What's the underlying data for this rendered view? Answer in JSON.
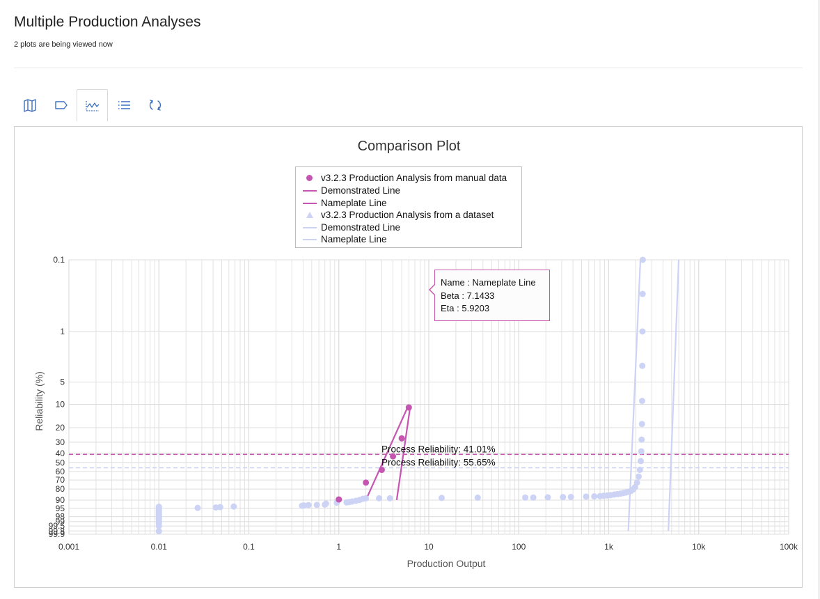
{
  "page": {
    "title": "Multiple Production Analyses",
    "subtitle": "2 plots are being viewed now"
  },
  "toolbar": {
    "buttons": [
      {
        "icon": "map-icon",
        "active": false
      },
      {
        "icon": "tag-icon",
        "active": false
      },
      {
        "icon": "line-chart-icon",
        "active": true
      },
      {
        "icon": "list-icon",
        "active": false
      },
      {
        "icon": "refresh-icon",
        "active": false
      }
    ]
  },
  "colors": {
    "manual": "#c455b1",
    "dataset": "#cdd3f5",
    "grid": "#dcdcdc",
    "axis_text": "#333333"
  },
  "chart_data": {
    "type": "scatter",
    "title": "Comparison Plot",
    "xlabel": "Production Output",
    "ylabel": "Reliability (%)",
    "x_scale": "log",
    "xlim": [
      0.001,
      100000
    ],
    "x_ticks": [
      {
        "value": 0.001,
        "label": "0.001"
      },
      {
        "value": 0.01,
        "label": "0.01"
      },
      {
        "value": 0.1,
        "label": "0.1"
      },
      {
        "value": 1,
        "label": "1"
      },
      {
        "value": 10,
        "label": "10"
      },
      {
        "value": 100,
        "label": "100"
      },
      {
        "value": 1000,
        "label": "1k"
      },
      {
        "value": 10000,
        "label": "10k"
      },
      {
        "value": 100000,
        "label": "100k"
      }
    ],
    "y_scale": "weibull",
    "ylim": [
      0.1,
      99.9
    ],
    "y_ticks": [
      {
        "value": 0.1,
        "label": "0.1"
      },
      {
        "value": 1,
        "label": "1"
      },
      {
        "value": 5,
        "label": "5"
      },
      {
        "value": 10,
        "label": "10"
      },
      {
        "value": 20,
        "label": "20"
      },
      {
        "value": 30,
        "label": "30"
      },
      {
        "value": 40,
        "label": "40"
      },
      {
        "value": 50,
        "label": "50"
      },
      {
        "value": 60,
        "label": "60"
      },
      {
        "value": 70,
        "label": "70"
      },
      {
        "value": 80,
        "label": "80"
      },
      {
        "value": 90,
        "label": "90"
      },
      {
        "value": 95,
        "label": "95"
      },
      {
        "value": 98,
        "label": "98"
      },
      {
        "value": 99,
        "label": "99"
      },
      {
        "value": 99.5,
        "label": "99.5"
      },
      {
        "value": 99.8,
        "label": "99.8"
      },
      {
        "value": 99.9,
        "label": "99.9"
      }
    ],
    "grid": true,
    "legend": {
      "position": "top-center",
      "entries": [
        {
          "label": "v3.2.3 Production Analysis from manual data",
          "marker": "dot",
          "series": "manual"
        },
        {
          "label": "Demonstrated Line",
          "marker": "line",
          "series": "manual"
        },
        {
          "label": "Nameplate Line",
          "marker": "line",
          "series": "manual"
        },
        {
          "label": "v3.2.3 Production Analysis from a dataset",
          "marker": "triangle",
          "series": "dataset"
        },
        {
          "label": "Demonstrated Line",
          "marker": "line",
          "series": "dataset"
        },
        {
          "label": "Nameplate Line",
          "marker": "line",
          "series": "dataset"
        }
      ]
    },
    "series": [
      {
        "name": "v3.2.3 Production Analysis from manual data",
        "color_key": "manual",
        "points": [
          [
            1.0,
            89.5
          ],
          [
            2.0,
            73
          ],
          [
            3.0,
            58
          ],
          [
            4.0,
            43
          ],
          [
            5.0,
            27
          ],
          [
            6.0,
            11
          ]
        ]
      },
      {
        "name": "v3.2.3 Production Analysis from a dataset",
        "color_key": "dataset",
        "points": [
          [
            0.01,
            99.81
          ],
          [
            0.01,
            99.5
          ],
          [
            0.01,
            99.2
          ],
          [
            0.01,
            98.9
          ],
          [
            0.01,
            98.6
          ],
          [
            0.01,
            98.4
          ],
          [
            0.01,
            98.2
          ],
          [
            0.01,
            98.0
          ],
          [
            0.01,
            97.7
          ],
          [
            0.01,
            97.4
          ],
          [
            0.01,
            97.0
          ],
          [
            0.01,
            96.6
          ],
          [
            0.01,
            96.2
          ],
          [
            0.01,
            95.8
          ],
          [
            0.01,
            95.4
          ],
          [
            0.01,
            95.0
          ],
          [
            0.01,
            94.6
          ],
          [
            0.01,
            94.2
          ],
          [
            0.027,
            94.8
          ],
          [
            0.043,
            94.6
          ],
          [
            0.048,
            94.4
          ],
          [
            0.068,
            94.1
          ],
          [
            0.39,
            93.7
          ],
          [
            0.41,
            93.5
          ],
          [
            0.46,
            93.3
          ],
          [
            0.57,
            93.2
          ],
          [
            0.7,
            93.0
          ],
          [
            0.72,
            92.4
          ],
          [
            0.95,
            91.8
          ],
          [
            1.22,
            91.6
          ],
          [
            1.3,
            91.4
          ],
          [
            1.4,
            91.0
          ],
          [
            1.55,
            90.5
          ],
          [
            1.7,
            89.9
          ],
          [
            1.85,
            89.0
          ],
          [
            2.0,
            88.6
          ],
          [
            2.8,
            88.6
          ],
          [
            3.7,
            88.6
          ],
          [
            13.9,
            88.3
          ],
          [
            35,
            88.1
          ],
          [
            118,
            88.0
          ],
          [
            145,
            88.0
          ],
          [
            210,
            87.8
          ],
          [
            310,
            87.6
          ],
          [
            380,
            87.5
          ],
          [
            560,
            87.2
          ],
          [
            690,
            87.0
          ],
          [
            800,
            86.8
          ],
          [
            880,
            86.5
          ],
          [
            960,
            86.2
          ],
          [
            1050,
            85.9
          ],
          [
            1150,
            85.4
          ],
          [
            1250,
            85.0
          ],
          [
            1350,
            84.6
          ],
          [
            1450,
            84.0
          ],
          [
            1550,
            83.5
          ],
          [
            1650,
            82.8
          ],
          [
            1760,
            82.0
          ],
          [
            1860,
            80.5
          ],
          [
            1960,
            78.0
          ],
          [
            2060,
            73.0
          ],
          [
            2150,
            66.0
          ],
          [
            2220,
            58.0
          ],
          [
            2270,
            48.0
          ],
          [
            2300,
            38.0
          ],
          [
            2320,
            28.0
          ],
          [
            2340,
            18.0
          ],
          [
            2350,
            9.0
          ],
          [
            2360,
            3.0
          ],
          [
            2370,
            1.0
          ],
          [
            2380,
            0.3
          ],
          [
            2390,
            0.1
          ]
        ]
      }
    ],
    "reference_lines": [
      {
        "type": "horizontal",
        "series": "manual",
        "y": 41.01,
        "style": "dashed",
        "label": "Process Reliability: 41.01%"
      },
      {
        "type": "horizontal",
        "series": "dataset",
        "y": 55.65,
        "style": "dashed",
        "label": "Process Reliability: 55.65%"
      },
      {
        "type": "fit",
        "series": "manual",
        "name": "Demonstrated Line",
        "from": [
          2.0,
          89.9
        ],
        "to": [
          5.8,
          11
        ]
      },
      {
        "type": "fit",
        "series": "manual",
        "name": "Nameplate Line",
        "from": [
          4.4,
          89.9
        ],
        "to": [
          6.2,
          11
        ]
      },
      {
        "type": "fit",
        "series": "dataset",
        "name": "Demonstrated Line",
        "from": [
          1650,
          99.81
        ],
        "to": [
          2250,
          0.1
        ]
      },
      {
        "type": "fit",
        "series": "dataset",
        "name": "Nameplate Line",
        "from": [
          4600,
          99.81
        ],
        "to": [
          6000,
          0.1
        ]
      }
    ],
    "tooltip": {
      "name": "Name : Nameplate Line",
      "beta": "Beta : 7.1433",
      "eta": "Eta : 5.9203"
    }
  }
}
